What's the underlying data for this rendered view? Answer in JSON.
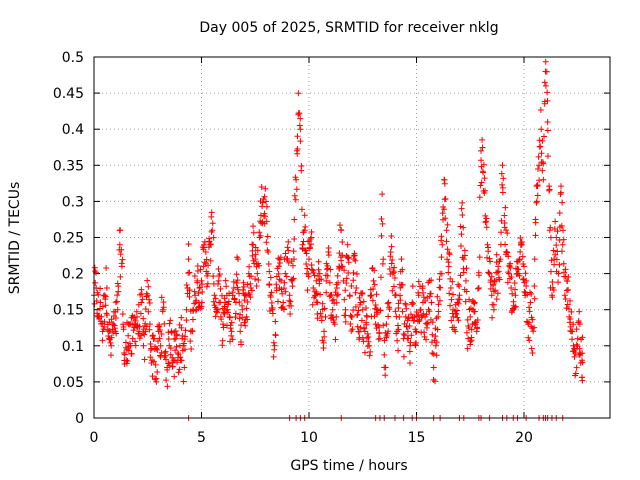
{
  "chart_data": {
    "type": "scatter",
    "title": "Day 005 of 2025, SRMTID for receiver nklg",
    "xlabel": "GPS time / hours",
    "ylabel": "SRMTID / TECUs",
    "xlim": [
      0,
      24
    ],
    "ylim": [
      0,
      0.5
    ],
    "x_ticks": [
      0,
      5,
      10,
      15,
      20
    ],
    "x_tick_labels": [
      "0",
      "5",
      "10",
      "15",
      "20"
    ],
    "y_ticks": [
      0,
      0.05,
      0.1,
      0.15,
      0.2,
      0.25,
      0.3,
      0.35,
      0.4,
      0.45,
      0.5
    ],
    "y_tick_labels": [
      "0",
      "0.05",
      "0.1",
      "0.15",
      "0.2",
      "0.25",
      "0.3",
      "0.35",
      "0.4",
      "0.45",
      "0.5"
    ],
    "grid": true,
    "marker": "+",
    "color": "#ff0000",
    "series": [
      {
        "name": "SRMTID",
        "note": "baseline points; full point cloud densified by deterministic jitter in script",
        "points": [
          [
            0.0,
            0.17
          ],
          [
            0.1,
            0.18
          ],
          [
            0.2,
            0.14
          ],
          [
            0.3,
            0.16
          ],
          [
            0.4,
            0.12
          ],
          [
            0.5,
            0.17
          ],
          [
            0.6,
            0.18
          ],
          [
            0.7,
            0.11
          ],
          [
            0.8,
            0.1
          ],
          [
            0.9,
            0.13
          ],
          [
            1.0,
            0.12
          ],
          [
            1.1,
            0.15
          ],
          [
            1.2,
            0.24
          ],
          [
            1.3,
            0.21
          ],
          [
            1.4,
            0.09
          ],
          [
            1.5,
            0.08
          ],
          [
            1.6,
            0.13
          ],
          [
            1.7,
            0.1
          ],
          [
            1.8,
            0.11
          ],
          [
            1.9,
            0.13
          ],
          [
            2.0,
            0.14
          ],
          [
            2.1,
            0.12
          ],
          [
            2.2,
            0.16
          ],
          [
            2.3,
            0.1
          ],
          [
            2.4,
            0.12
          ],
          [
            2.5,
            0.17
          ],
          [
            2.6,
            0.13
          ],
          [
            2.7,
            0.08
          ],
          [
            2.8,
            0.11
          ],
          [
            2.9,
            0.05
          ],
          [
            3.0,
            0.12
          ],
          [
            3.1,
            0.1
          ],
          [
            3.2,
            0.15
          ],
          [
            3.3,
            0.09
          ],
          [
            3.4,
            0.07
          ],
          [
            3.5,
            0.1
          ],
          [
            3.6,
            0.12
          ],
          [
            3.7,
            0.08
          ],
          [
            3.8,
            0.11
          ],
          [
            3.9,
            0.09
          ],
          [
            4.0,
            0.1
          ],
          [
            4.1,
            0.11
          ],
          [
            4.2,
            0.07
          ],
          [
            4.3,
            0.15
          ],
          [
            4.4,
            0.22
          ],
          [
            4.5,
            0.12
          ],
          [
            4.6,
            0.15
          ],
          [
            4.7,
            0.17
          ],
          [
            4.8,
            0.19
          ],
          [
            4.9,
            0.18
          ],
          [
            5.0,
            0.19
          ],
          [
            5.1,
            0.21
          ],
          [
            5.2,
            0.23
          ],
          [
            5.3,
            0.2
          ],
          [
            5.4,
            0.24
          ],
          [
            5.5,
            0.26
          ],
          [
            5.6,
            0.17
          ],
          [
            5.7,
            0.15
          ],
          [
            5.8,
            0.19
          ],
          [
            5.9,
            0.14
          ],
          [
            6.0,
            0.13
          ],
          [
            6.1,
            0.16
          ],
          [
            6.2,
            0.15
          ],
          [
            6.3,
            0.14
          ],
          [
            6.4,
            0.12
          ],
          [
            6.5,
            0.18
          ],
          [
            6.6,
            0.16
          ],
          [
            6.7,
            0.22
          ],
          [
            6.8,
            0.12
          ],
          [
            6.9,
            0.15
          ],
          [
            7.0,
            0.17
          ],
          [
            7.1,
            0.14
          ],
          [
            7.2,
            0.2
          ],
          [
            7.3,
            0.18
          ],
          [
            7.4,
            0.24
          ],
          [
            7.5,
            0.22
          ],
          [
            7.6,
            0.2
          ],
          [
            7.7,
            0.25
          ],
          [
            7.8,
            0.32
          ],
          [
            7.9,
            0.28
          ],
          [
            8.0,
            0.3
          ],
          [
            8.1,
            0.23
          ],
          [
            8.2,
            0.17
          ],
          [
            8.3,
            0.15
          ],
          [
            8.4,
            0.1
          ],
          [
            8.5,
            0.18
          ],
          [
            8.6,
            0.21
          ],
          [
            8.7,
            0.19
          ],
          [
            8.8,
            0.16
          ],
          [
            8.9,
            0.2
          ],
          [
            9.0,
            0.22
          ],
          [
            9.1,
            0.17
          ],
          [
            9.2,
            0.19
          ],
          [
            9.3,
            0.22
          ],
          [
            9.4,
            0.33
          ],
          [
            9.5,
            0.42
          ],
          [
            9.6,
            0.4
          ],
          [
            9.7,
            0.24
          ],
          [
            9.8,
            0.26
          ],
          [
            9.9,
            0.2
          ],
          [
            10.0,
            0.22
          ],
          [
            10.1,
            0.25
          ],
          [
            10.2,
            0.18
          ],
          [
            10.3,
            0.17
          ],
          [
            10.4,
            0.16
          ],
          [
            10.5,
            0.2
          ],
          [
            10.6,
            0.14
          ],
          [
            10.7,
            0.12
          ],
          [
            10.8,
            0.19
          ],
          [
            10.9,
            0.23
          ],
          [
            11.0,
            0.17
          ],
          [
            11.1,
            0.15
          ],
          [
            11.2,
            0.13
          ],
          [
            11.3,
            0.18
          ],
          [
            11.4,
            0.21
          ],
          [
            11.5,
            0.26
          ],
          [
            11.6,
            0.19
          ],
          [
            11.7,
            0.15
          ],
          [
            11.8,
            0.24
          ],
          [
            11.9,
            0.17
          ],
          [
            12.0,
            0.14
          ],
          [
            12.1,
            0.22
          ],
          [
            12.2,
            0.18
          ],
          [
            12.3,
            0.12
          ],
          [
            12.4,
            0.16
          ],
          [
            12.5,
            0.15
          ],
          [
            12.6,
            0.12
          ],
          [
            12.7,
            0.14
          ],
          [
            12.8,
            0.1
          ],
          [
            12.9,
            0.17
          ],
          [
            13.0,
            0.19
          ],
          [
            13.1,
            0.13
          ],
          [
            13.2,
            0.15
          ],
          [
            13.3,
            0.11
          ],
          [
            13.4,
            0.31
          ],
          [
            13.5,
            0.07
          ],
          [
            13.6,
            0.13
          ],
          [
            13.7,
            0.16
          ],
          [
            13.8,
            0.23
          ],
          [
            13.9,
            0.2
          ],
          [
            14.0,
            0.17
          ],
          [
            14.1,
            0.12
          ],
          [
            14.2,
            0.14
          ],
          [
            14.3,
            0.22
          ],
          [
            14.4,
            0.11
          ],
          [
            14.5,
            0.14
          ],
          [
            14.6,
            0.12
          ],
          [
            14.7,
            0.1
          ],
          [
            14.8,
            0.16
          ],
          [
            14.9,
            0.14
          ],
          [
            15.0,
            0.12
          ],
          [
            15.1,
            0.17
          ],
          [
            15.2,
            0.15
          ],
          [
            15.3,
            0.16
          ],
          [
            15.4,
            0.14
          ],
          [
            15.5,
            0.13
          ],
          [
            15.6,
            0.19
          ],
          [
            15.7,
            0.16
          ],
          [
            15.8,
            0.07
          ],
          [
            15.9,
            0.1
          ],
          [
            16.0,
            0.14
          ],
          [
            16.1,
            0.2
          ],
          [
            16.2,
            0.24
          ],
          [
            16.3,
            0.33
          ],
          [
            16.4,
            0.26
          ],
          [
            16.5,
            0.21
          ],
          [
            16.6,
            0.18
          ],
          [
            16.7,
            0.15
          ],
          [
            16.8,
            0.12
          ],
          [
            16.9,
            0.16
          ],
          [
            17.0,
            0.17
          ],
          [
            17.1,
            0.29
          ],
          [
            17.2,
            0.22
          ],
          [
            17.3,
            0.19
          ],
          [
            17.4,
            0.11
          ],
          [
            17.5,
            0.14
          ],
          [
            17.6,
            0.13
          ],
          [
            17.7,
            0.16
          ],
          [
            17.8,
            0.12
          ],
          [
            17.9,
            0.18
          ],
          [
            18.0,
            0.37
          ],
          [
            18.1,
            0.34
          ],
          [
            18.2,
            0.28
          ],
          [
            18.3,
            0.24
          ],
          [
            18.4,
            0.2
          ],
          [
            18.5,
            0.17
          ],
          [
            18.6,
            0.15
          ],
          [
            18.7,
            0.19
          ],
          [
            18.8,
            0.21
          ],
          [
            18.9,
            0.22
          ],
          [
            19.0,
            0.35
          ],
          [
            19.1,
            0.27
          ],
          [
            19.2,
            0.23
          ],
          [
            19.3,
            0.2
          ],
          [
            19.4,
            0.18
          ],
          [
            19.5,
            0.15
          ],
          [
            19.6,
            0.17
          ],
          [
            19.7,
            0.2
          ],
          [
            19.8,
            0.22
          ],
          [
            19.9,
            0.24
          ],
          [
            20.0,
            0.21
          ],
          [
            20.1,
            0.19
          ],
          [
            20.2,
            0.13
          ],
          [
            20.3,
            0.16
          ],
          [
            20.4,
            0.09
          ],
          [
            20.5,
            0.22
          ],
          [
            20.6,
            0.3
          ],
          [
            20.7,
            0.35
          ],
          [
            20.8,
            0.4
          ],
          [
            20.9,
            0.33
          ],
          [
            21.0,
            0.48
          ],
          [
            21.1,
            0.41
          ],
          [
            21.2,
            0.26
          ],
          [
            21.3,
            0.17
          ],
          [
            21.4,
            0.22
          ],
          [
            21.5,
            0.25
          ],
          [
            21.6,
            0.2
          ],
          [
            21.7,
            0.31
          ],
          [
            21.8,
            0.24
          ],
          [
            21.9,
            0.17
          ],
          [
            22.0,
            0.19
          ],
          [
            22.1,
            0.14
          ],
          [
            22.2,
            0.12
          ],
          [
            22.3,
            0.1
          ],
          [
            22.4,
            0.09
          ],
          [
            22.5,
            0.11
          ],
          [
            22.6,
            0.13
          ],
          [
            22.7,
            0.08
          ]
        ]
      }
    ],
    "zero_points_x": [
      4.4,
      9.1,
      9.4,
      9.6,
      9.8,
      11.5,
      13.1,
      13.3,
      13.5,
      14.0,
      14.4,
      14.8,
      15.0,
      15.8,
      16.1,
      17.0,
      17.2,
      17.9,
      18.0,
      18.4,
      19.0,
      19.2,
      19.5,
      19.7,
      20.1,
      20.7,
      20.9,
      21.0,
      21.1,
      21.3,
      21.5,
      21.8
    ]
  }
}
